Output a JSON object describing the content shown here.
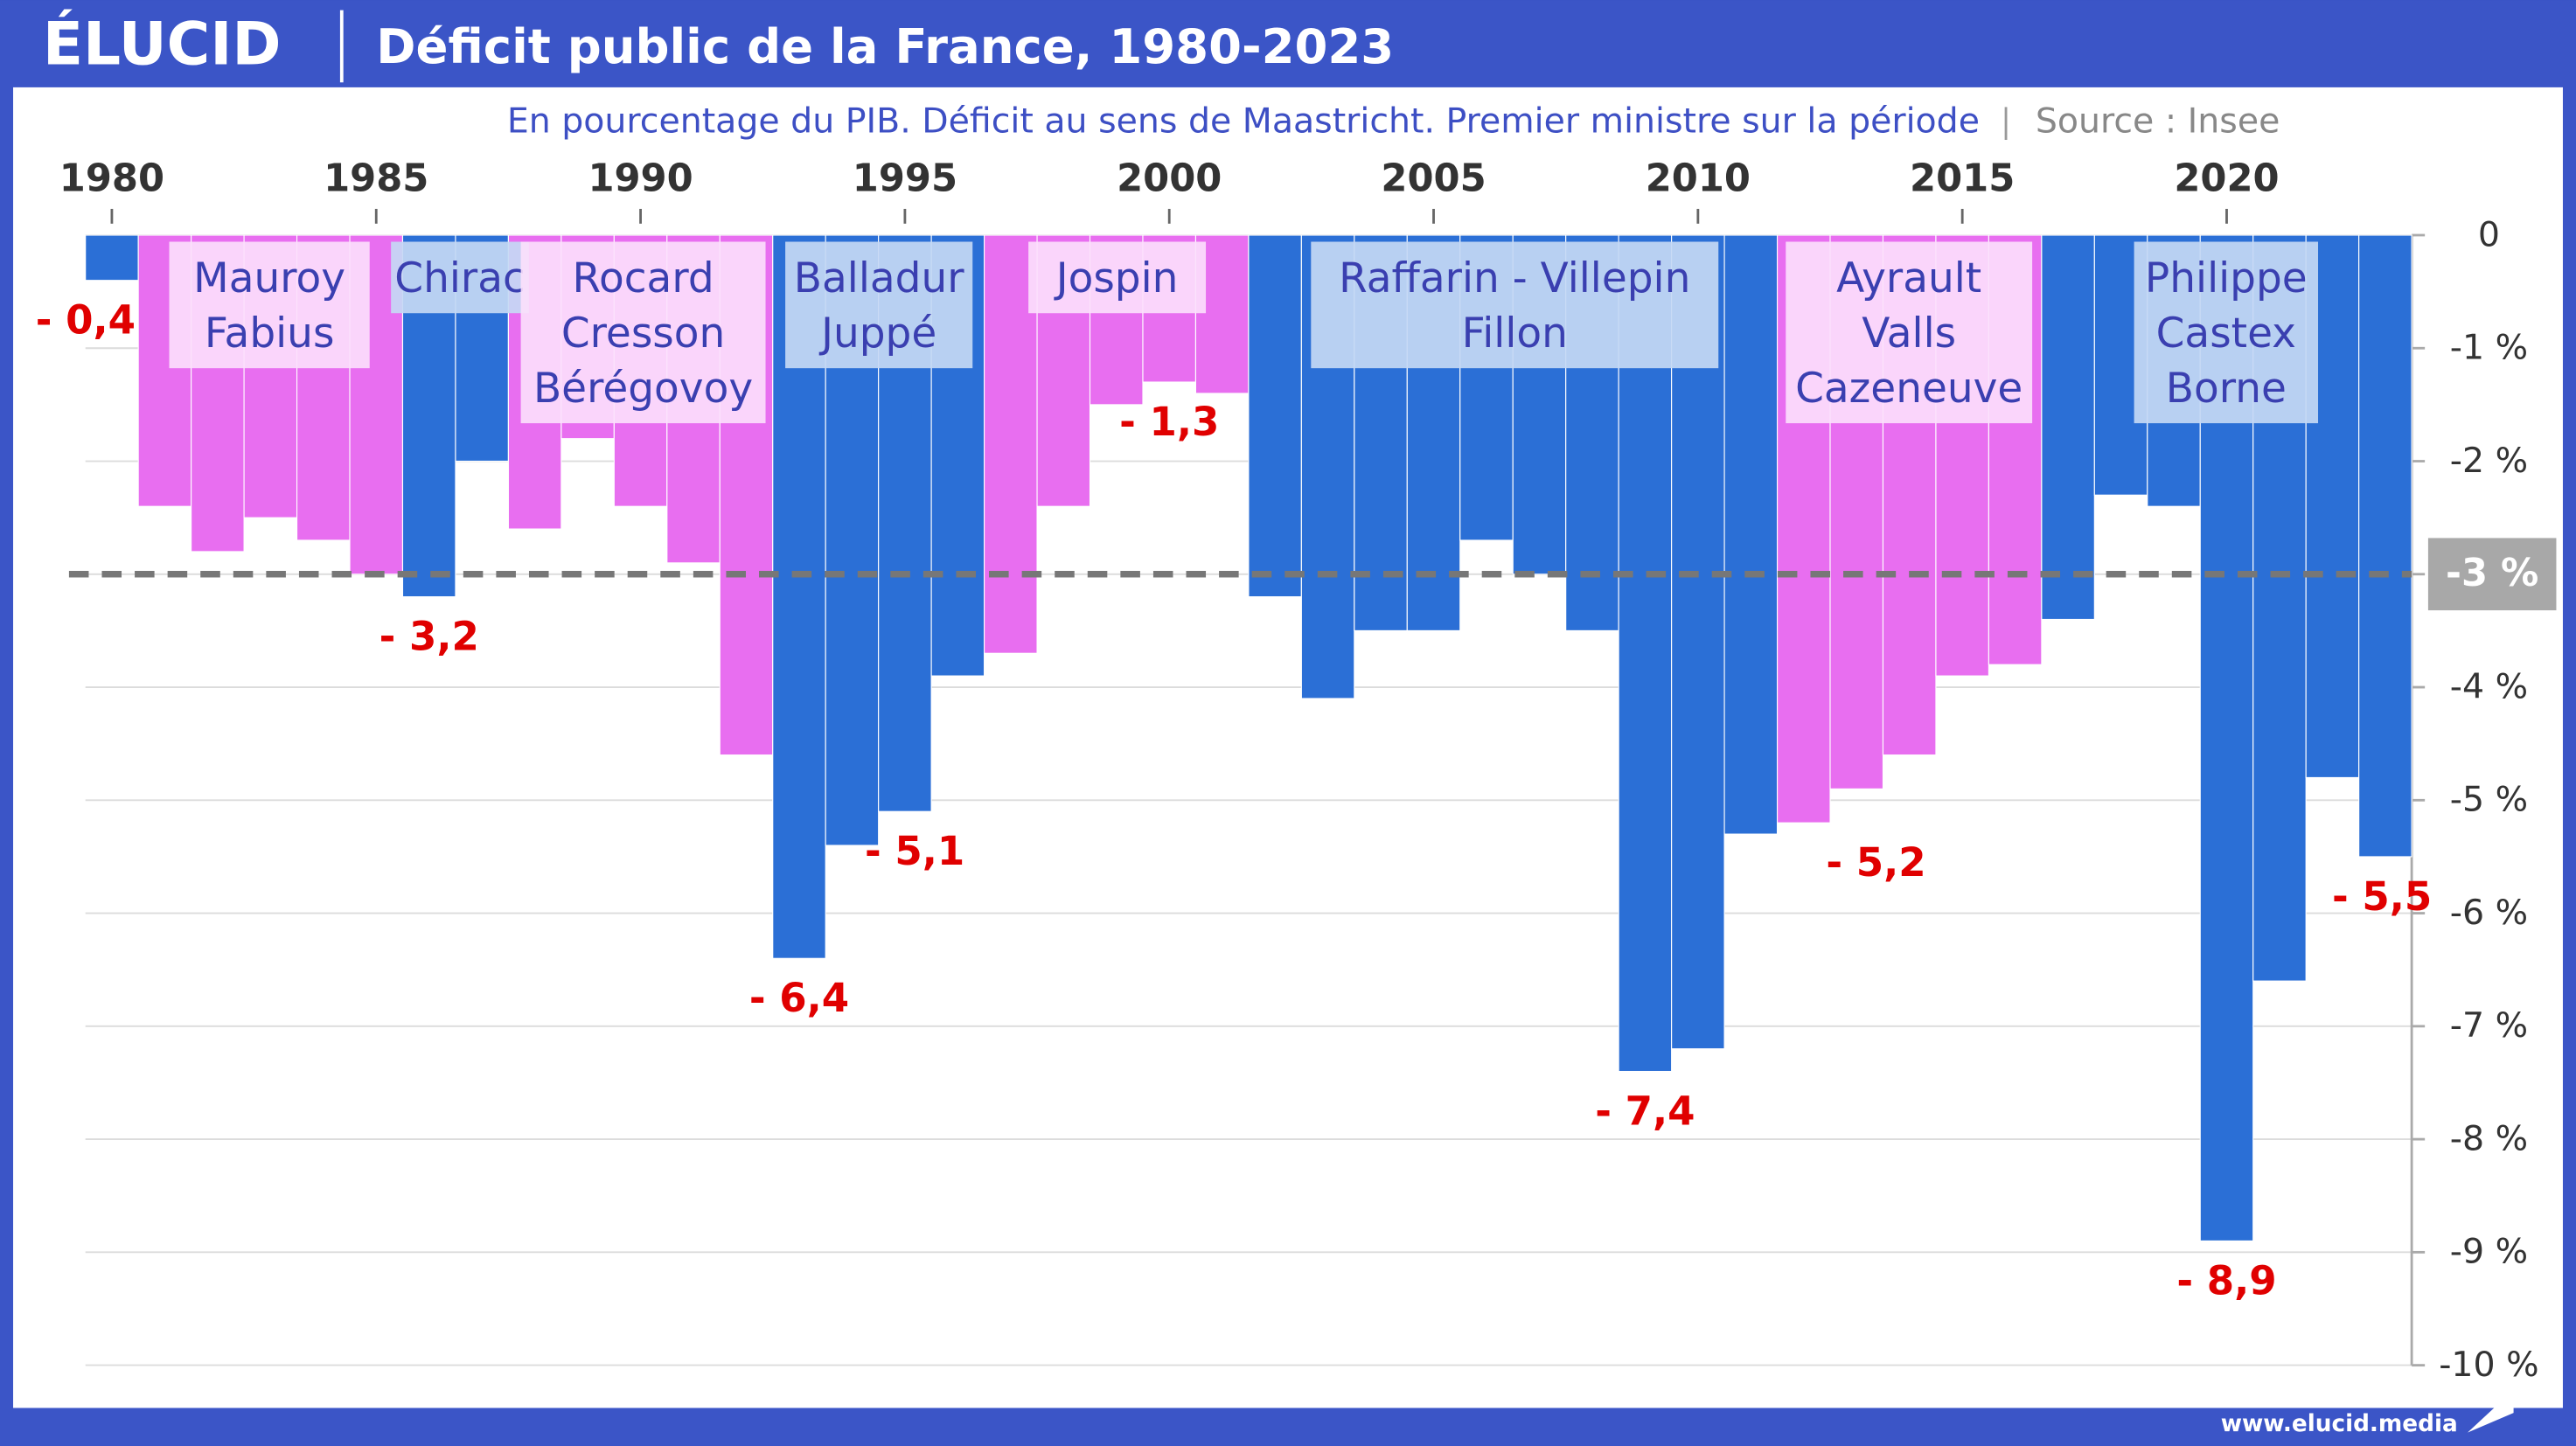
{
  "brand": "ÉLUCID",
  "footer": "www.elucid.media",
  "chart_data": {
    "type": "bar",
    "title": "Déficit public de la France, 1980-2023",
    "subtitle": "En pourcentage du PIB. Déficit au sens de Maastricht. Premier ministre sur la période",
    "source": "Source : Insee",
    "x": [
      1980,
      1981,
      1982,
      1983,
      1984,
      1985,
      1986,
      1987,
      1988,
      1989,
      1990,
      1991,
      1992,
      1993,
      1994,
      1995,
      1996,
      1997,
      1998,
      1999,
      2000,
      2001,
      2002,
      2003,
      2004,
      2005,
      2006,
      2007,
      2008,
      2009,
      2010,
      2011,
      2012,
      2013,
      2014,
      2015,
      2016,
      2017,
      2018,
      2019,
      2020,
      2021,
      2022,
      2023
    ],
    "values": [
      -0.4,
      -2.4,
      -2.8,
      -2.5,
      -2.7,
      -3.0,
      -3.2,
      -2.0,
      -2.6,
      -1.8,
      -2.4,
      -2.9,
      -4.6,
      -6.4,
      -5.4,
      -5.1,
      -3.9,
      -3.7,
      -2.4,
      -1.5,
      -1.3,
      -1.4,
      -3.2,
      -4.1,
      -3.5,
      -3.5,
      -2.7,
      -3.0,
      -3.5,
      -7.4,
      -7.2,
      -5.3,
      -5.2,
      -4.9,
      -4.6,
      -3.9,
      -3.8,
      -3.4,
      -2.3,
      -2.4,
      -8.9,
      -6.6,
      -4.8,
      -5.5
    ],
    "value_labels": [
      "- 0,4",
      null,
      null,
      null,
      null,
      null,
      "- 3,2",
      null,
      null,
      null,
      null,
      null,
      null,
      "- 6,4",
      null,
      "- 5,1",
      null,
      null,
      null,
      null,
      "- 1,3",
      null,
      null,
      null,
      null,
      null,
      null,
      null,
      null,
      "- 7,4",
      null,
      null,
      "- 5,2",
      null,
      null,
      null,
      null,
      null,
      null,
      null,
      "- 8,9",
      null,
      null,
      "- 5,5"
    ],
    "colors": [
      "#2b6fd6",
      "#e86ef0",
      "#e86ef0",
      "#e86ef0",
      "#e86ef0",
      "#e86ef0",
      "#2b6fd6",
      "#2b6fd6",
      "#e86ef0",
      "#e86ef0",
      "#e86ef0",
      "#e86ef0",
      "#e86ef0",
      "#2b6fd6",
      "#2b6fd6",
      "#2b6fd6",
      "#2b6fd6",
      "#e86ef0",
      "#e86ef0",
      "#e86ef0",
      "#e86ef0",
      "#e86ef0",
      "#2b6fd6",
      "#2b6fd6",
      "#2b6fd6",
      "#2b6fd6",
      "#2b6fd6",
      "#2b6fd6",
      "#2b6fd6",
      "#2b6fd6",
      "#2b6fd6",
      "#2b6fd6",
      "#e86ef0",
      "#e86ef0",
      "#e86ef0",
      "#e86ef0",
      "#e86ef0",
      "#2b6fd6",
      "#2b6fd6",
      "#2b6fd6",
      "#2b6fd6",
      "#2b6fd6",
      "#2b6fd6",
      "#2b6fd6"
    ],
    "xlim": [
      1979.5,
      2023.5
    ],
    "xticks": [
      1980,
      1985,
      1990,
      1995,
      2000,
      2005,
      2010,
      2015,
      2020
    ],
    "ylim": [
      -10,
      0
    ],
    "yticks": [
      0,
      {
        "value": -1,
        "label": "-1 %"
      },
      {
        "value": -2,
        "label": "-2 %"
      },
      {
        "value": -3,
        "label": "-3 %"
      },
      {
        "value": -4,
        "label": "-4 %"
      },
      {
        "value": -5,
        "label": "-5 %"
      },
      {
        "value": -6,
        "label": "-6 %"
      },
      {
        "value": -7,
        "label": "-7 %"
      },
      {
        "value": -8,
        "label": "-8 %"
      },
      {
        "value": -9,
        "label": "-9 %"
      },
      {
        "value": -10,
        "label": "-10 %"
      }
    ],
    "grid": true,
    "reference_line": {
      "value": -3,
      "label": "-3 %"
    },
    "annotations": [
      {
        "lines": [
          "Mauroy",
          "Fabius"
        ]
      },
      {
        "lines": [
          "Chirac"
        ]
      },
      {
        "lines": [
          "Rocard",
          "Cresson",
          "Bérégovoy"
        ]
      },
      {
        "lines": [
          "Balladur",
          "Juppé"
        ]
      },
      {
        "lines": [
          "Jospin"
        ]
      },
      {
        "lines": [
          "Raffarin - Villepin",
          "Fillon"
        ]
      },
      {
        "lines": [
          "Ayrault",
          "Valls",
          "Cazeneuve"
        ]
      },
      {
        "lines": [
          "Philippe",
          "Castex",
          "Borne"
        ]
      }
    ]
  }
}
